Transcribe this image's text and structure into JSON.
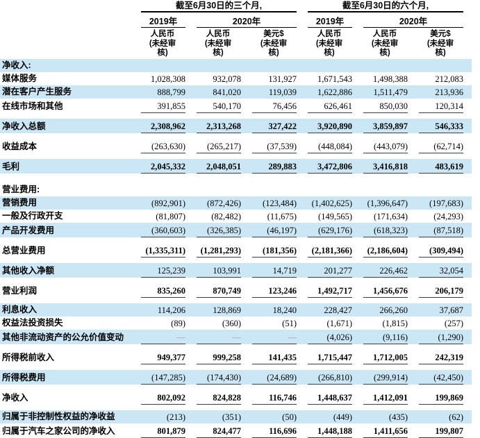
{
  "header": {
    "period_3m": "截至6月30日的三个月,",
    "period_6m": "截至6月30日的六个月,",
    "year_2019": "2019年",
    "year_2020": "2020年",
    "currency_rmb": "人民币",
    "currency_usd": "美元$",
    "unaudited_line1": "(未经审",
    "unaudited_line2": "核)"
  },
  "table": {
    "rows": [
      {
        "label": "净收入:",
        "type": "section",
        "highlight": true,
        "values": [
          "",
          "",
          "",
          "",
          "",
          ""
        ]
      },
      {
        "label": "媒体服务",
        "values": [
          "1,028,308",
          "932,078",
          "131,927",
          "1,671,543",
          "1,498,388",
          "212,083"
        ]
      },
      {
        "label": "潜在客户产生服务",
        "highlight": true,
        "values": [
          "888,799",
          "841,020",
          "119,039",
          "1,622,886",
          "1,511,479",
          "213,936"
        ]
      },
      {
        "label": "在线市场和其他",
        "underline": true,
        "gap_after": "s",
        "values": [
          "391,855",
          "540,170",
          "76,456",
          "626,461",
          "850,030",
          "120,314"
        ]
      },
      {
        "label": "净收入总额",
        "highlight": true,
        "bold": true,
        "underline": true,
        "gap_after": "s",
        "values": [
          "2,308,962",
          "2,313,268",
          "327,422",
          "3,920,890",
          "3,859,897",
          "546,333"
        ]
      },
      {
        "label": "收益成本",
        "underline": true,
        "gap_after": "s",
        "values": [
          "(263,630)",
          "(265,217)",
          "(37,539)",
          "(448,084)",
          "(443,079)",
          "(62,714)"
        ]
      },
      {
        "label": "毛利",
        "highlight": true,
        "bold": true,
        "underline": true,
        "gap_after": "l",
        "values": [
          "2,045,332",
          "2,048,051",
          "289,883",
          "3,472,806",
          "3,416,818",
          "483,619"
        ]
      },
      {
        "label": "营业费用:",
        "type": "section",
        "values": [
          "",
          "",
          "",
          "",
          "",
          ""
        ]
      },
      {
        "label": "营销费用",
        "highlight": true,
        "values": [
          "(892,901)",
          "(872,426)",
          "(123,484)",
          "(1,402,625)",
          "(1,396,647)",
          "(197,683)"
        ]
      },
      {
        "label": "一般及行政开支",
        "values": [
          "(81,807)",
          "(82,482)",
          "(11,675)",
          "(149,565)",
          "(171,634)",
          "(24,293)"
        ]
      },
      {
        "label": "产品开发费用",
        "highlight": true,
        "underline": true,
        "gap_after": "s",
        "values": [
          "(360,603)",
          "(326,385)",
          "(46,197)",
          "(629,176)",
          "(618,323)",
          "(87,518)"
        ]
      },
      {
        "label": "总营业费用",
        "bold": true,
        "underline": true,
        "gap_after": "s",
        "values": [
          "(1,335,311)",
          "(1,281,293)",
          "(181,356)",
          "(2,181,366)",
          "(2,186,604)",
          "(309,494)"
        ]
      },
      {
        "label": "其他收入净额",
        "highlight": true,
        "underline": true,
        "gap_after": "s",
        "values": [
          "125,239",
          "103,991",
          "14,719",
          "201,277",
          "226,462",
          "32,054"
        ]
      },
      {
        "label": "营业利润",
        "bold": true,
        "underline": true,
        "gap_after": "s",
        "values": [
          "835,260",
          "870,749",
          "123,246",
          "1,492,717",
          "1,456,676",
          "206,179"
        ]
      },
      {
        "label": "利息收入",
        "highlight": true,
        "values": [
          "114,206",
          "128,869",
          "18,240",
          "228,427",
          "266,260",
          "37,687"
        ]
      },
      {
        "label": "权益法投资损失",
        "values": [
          "(89)",
          "(360)",
          "(51)",
          "(1,671)",
          "(1,815)",
          "(257)"
        ]
      },
      {
        "label": "其他非流动资产的公允价值变动",
        "highlight": true,
        "underline": true,
        "gap_after": "s",
        "values": [
          "—",
          "—",
          "—",
          "(4,026)",
          "(9,116)",
          "(1,290)"
        ]
      },
      {
        "label": "所得税前收入",
        "bold": true,
        "underline": true,
        "gap_after": "s",
        "values": [
          "949,377",
          "999,258",
          "141,435",
          "1,715,447",
          "1,712,005",
          "242,319"
        ]
      },
      {
        "label": "所得税费用",
        "highlight": true,
        "underline": true,
        "gap_after": "s",
        "values": [
          "(147,285)",
          "(174,430)",
          "(24,689)",
          "(266,810)",
          "(299,914)",
          "(42,450)"
        ]
      },
      {
        "label": "净收入",
        "bold": true,
        "underline": true,
        "gap_after": "s",
        "values": [
          "802,092",
          "824,828",
          "116,746",
          "1,448,637",
          "1,412,091",
          "199,869"
        ]
      },
      {
        "label": "归属于非控制性权益的净收益",
        "highlight": true,
        "values": [
          "(213)",
          "(351)",
          "(50)",
          "(449)",
          "(435)",
          "(62)"
        ]
      },
      {
        "label": "归属于汽车之家公司的净收入",
        "bold": true,
        "underline": true,
        "values": [
          "801,879",
          "824,477",
          "116,696",
          "1,448,188",
          "1,411,656",
          "199,807"
        ]
      }
    ]
  }
}
